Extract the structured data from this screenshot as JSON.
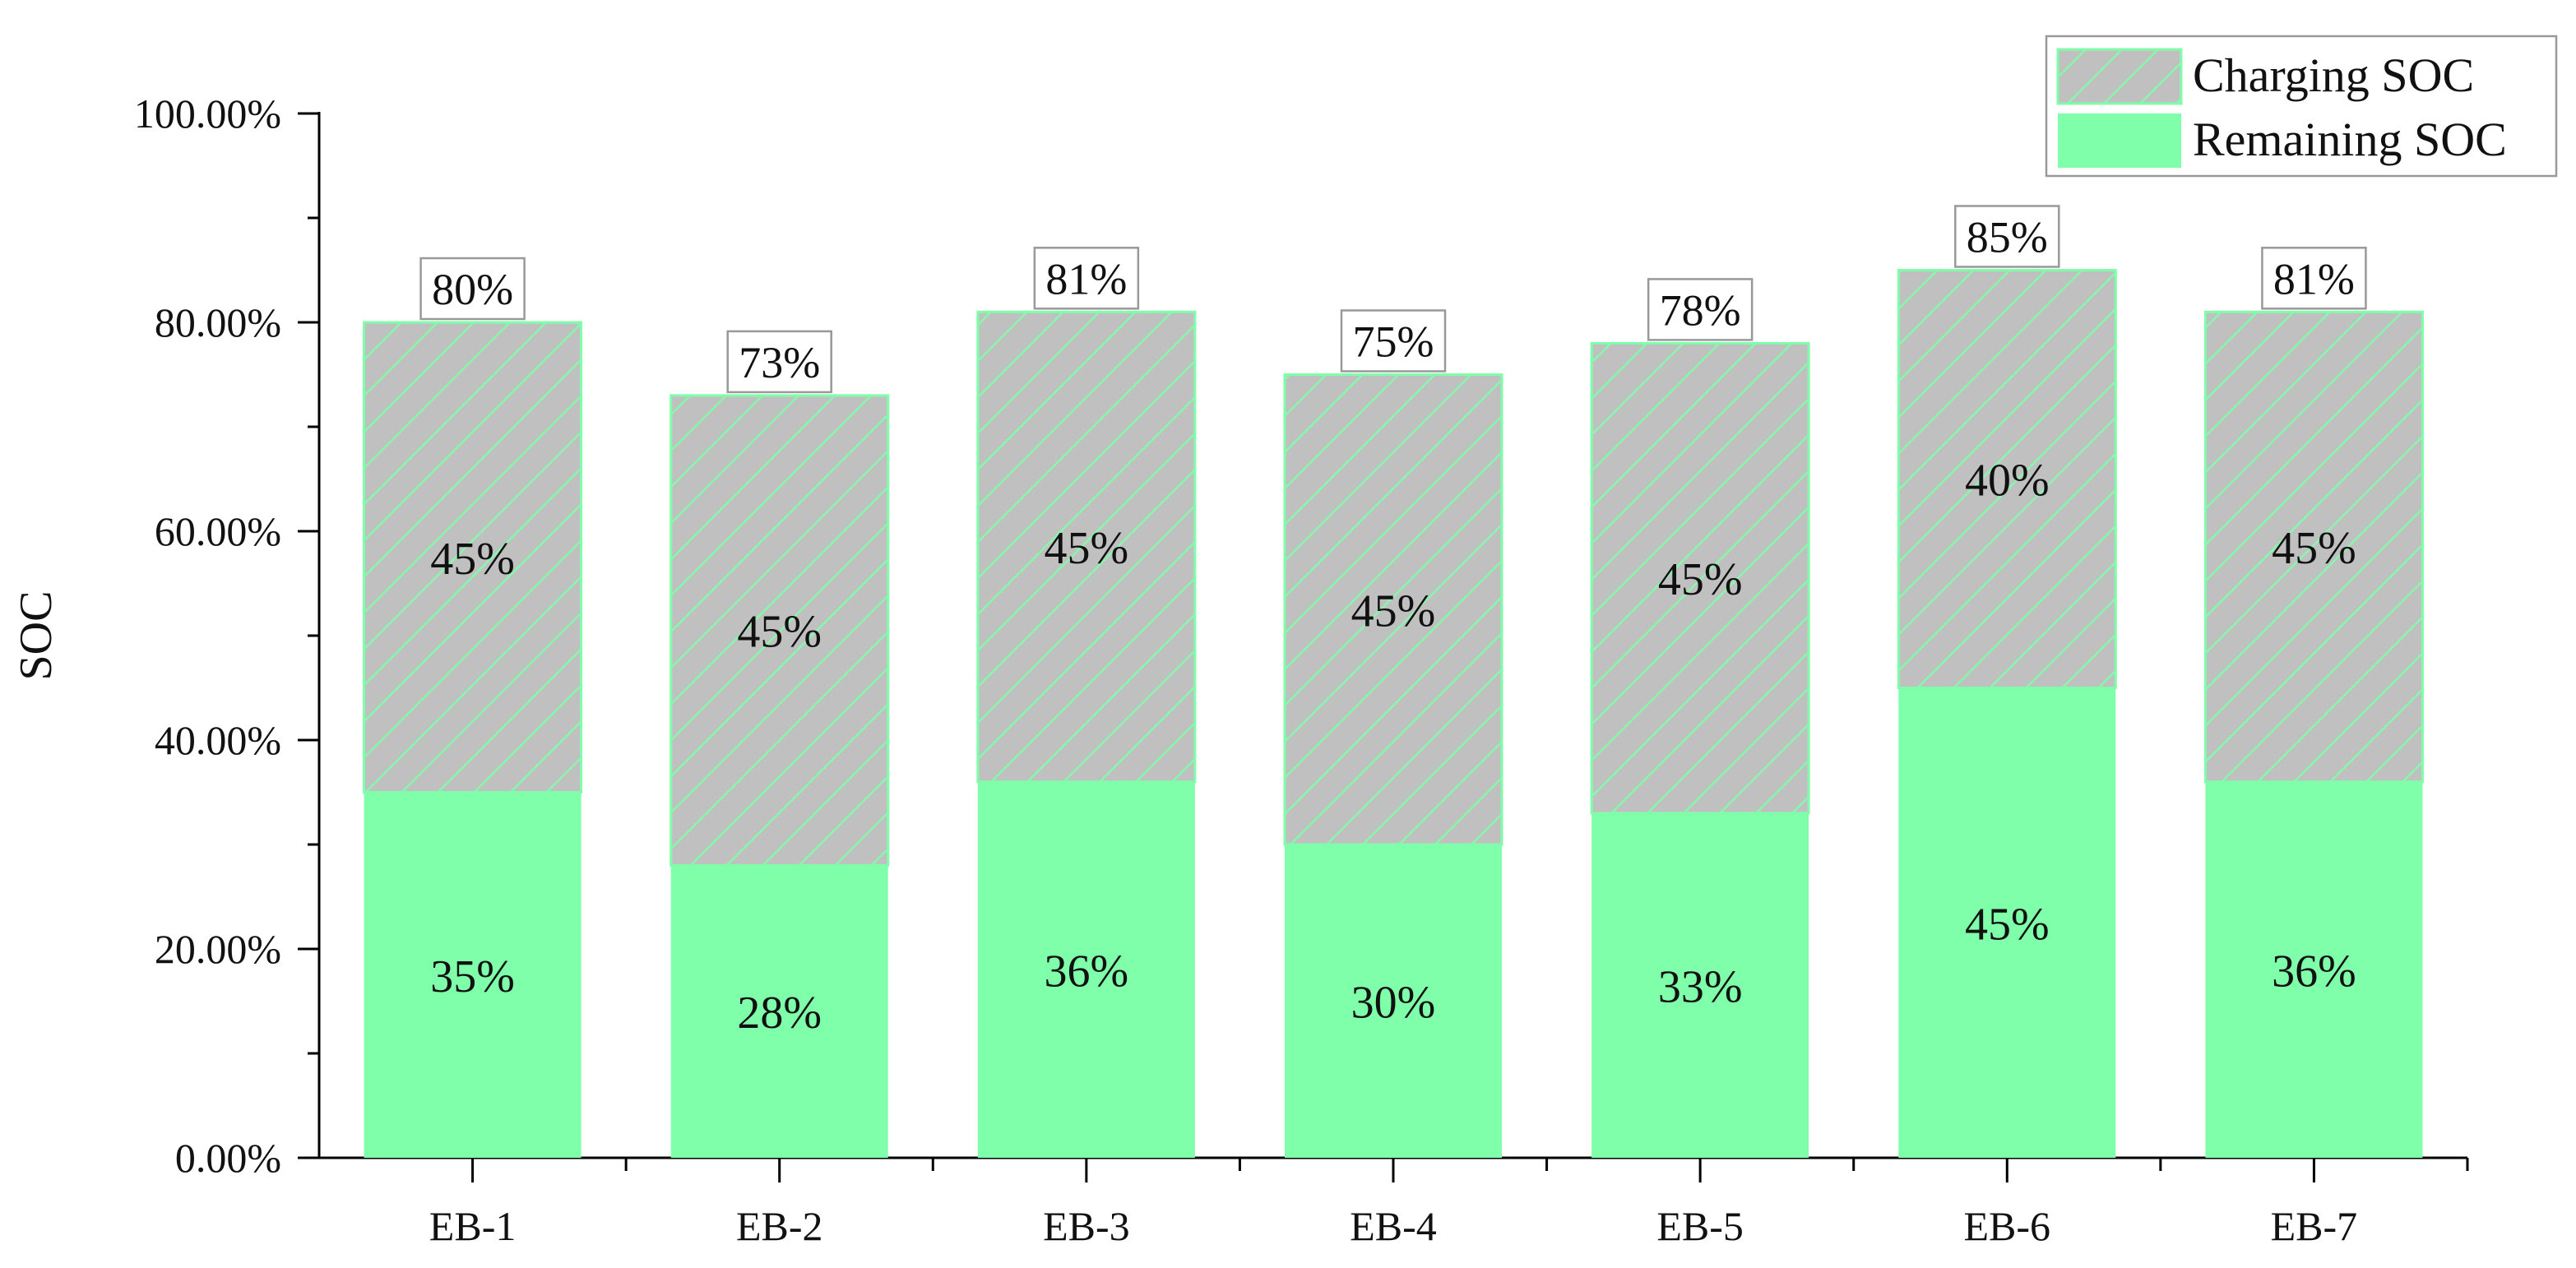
{
  "chart_data": {
    "type": "bar",
    "stacked": true,
    "categories": [
      "EB-1",
      "EB-2",
      "EB-3",
      "EB-4",
      "EB-5",
      "EB-6",
      "EB-7"
    ],
    "series": [
      {
        "name": "Remaining SOC",
        "values": [
          35,
          28,
          36,
          30,
          33,
          45,
          36
        ],
        "labels": [
          "35%",
          "28%",
          "36%",
          "30%",
          "33%",
          "45%",
          "36%"
        ],
        "color": "#80FFAA"
      },
      {
        "name": "Charging SOC",
        "values": [
          45,
          45,
          45,
          45,
          45,
          40,
          45
        ],
        "labels": [
          "45%",
          "45%",
          "45%",
          "45%",
          "45%",
          "40%",
          "45%"
        ],
        "color": "#C0C0C0",
        "hatch_color": "#80FFAA"
      }
    ],
    "totals": [
      80,
      73,
      81,
      75,
      78,
      85,
      81
    ],
    "total_labels": [
      "80%",
      "73%",
      "81%",
      "75%",
      "78%",
      "85%",
      "81%"
    ],
    "ylabel": "SOC",
    "xlabel": "",
    "ylim": [
      0,
      100
    ],
    "yticks": [
      0,
      20,
      40,
      60,
      80,
      100
    ],
    "ytick_labels": [
      "0.00%",
      "20.00%",
      "40.00%",
      "60.00%",
      "80.00%",
      "100.00%"
    ],
    "grid": false,
    "legend_position": "top-right",
    "legend_order": [
      "Charging SOC",
      "Remaining SOC"
    ]
  }
}
